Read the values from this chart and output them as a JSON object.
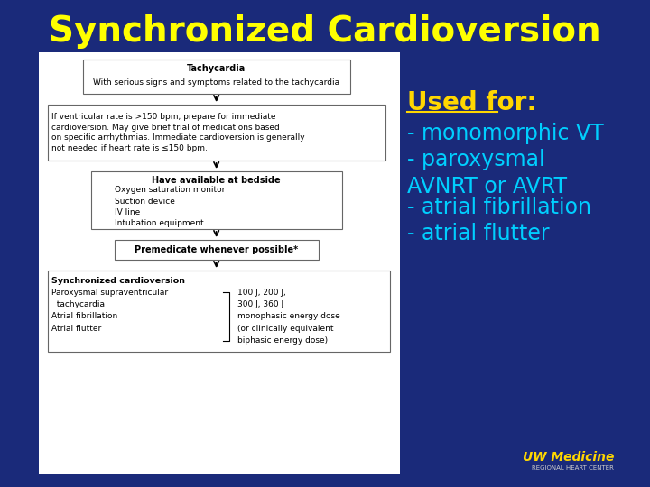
{
  "title": "Synchronized Cardioversion",
  "title_color": "#FFFF00",
  "title_fontsize": 28,
  "bg_color": "#1a2a7a",
  "flowchart_bg": "#ffffff",
  "used_for_label": "Used for:",
  "used_for_color": "#FFD700",
  "used_for_fontsize": 20,
  "bullets": [
    "- monomorphic VT",
    "- paroxysmal\nAVNRT or AVRT",
    "- atrial fibrillation",
    "- atrial flutter"
  ],
  "bullet_color": "#00CFFF",
  "bullet_fontsize": 17,
  "uw_medicine": "UW Medicine",
  "uw_medicine_color": "#FFD700",
  "uw_sub": "REGIONAL HEART CENTER",
  "uw_sub_color": "#cccccc",
  "box1_title": "Tachycardia",
  "box1_text": "With serious signs and symptoms related to the tachycardia",
  "box2_text": "If ventricular rate is >150 bpm, prepare for immediate\ncardioversion. May give brief trial of medications based\non specific arrhythmias. Immediate cardioversion is generally\nnot needed if heart rate is ≤150 bpm.",
  "box3_title": "Have available at bedside",
  "box3_text": "Oxygen saturation monitor\nSuction device\nIV line\nIntubation equipment",
  "box4_text": "Premedicate whenever possible*",
  "box5_title": "Synchronized cardioversion",
  "box5_text": "Paroxysmal supraventricular\n  tachycardia\nAtrial fibrillation\nAtrial flutter",
  "box5_right": "100 J, 200 J,\n300 J, 360 J\nmonophasic energy dose\n(or clinically equivalent\nbiphasic energy dose)"
}
